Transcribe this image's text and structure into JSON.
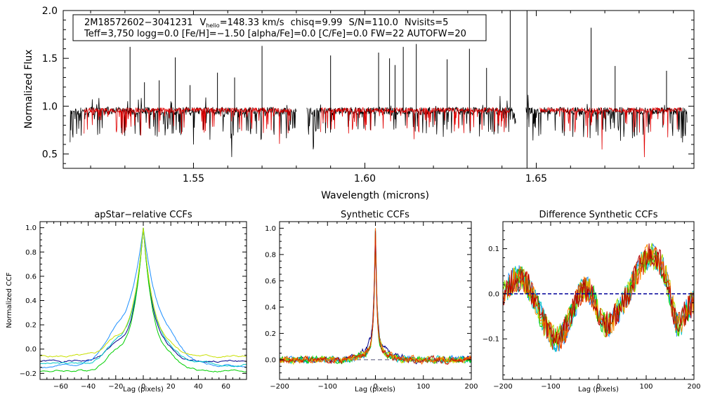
{
  "chart_data": [
    {
      "type": "line",
      "xlabel": "Wavelength (microns)",
      "ylabel": "Normalized Flux",
      "xlim": [
        1.512,
        1.696
      ],
      "ylim": [
        0.35,
        2.0
      ],
      "xticks": [
        1.55,
        1.6,
        1.65
      ],
      "xtick_labels": [
        "1.55",
        "1.60",
        "1.65"
      ],
      "yticks": [
        0.5,
        1.0,
        1.5,
        2.0
      ],
      "ytick_labels": [
        "0.5",
        "1.0",
        "1.5",
        "2.0"
      ],
      "info_line1": {
        "star": "2M18572602−3041231",
        "vhelio_main": "V",
        "vhelio_sub": "helio",
        "vhelio_value": "=148.33 km/s",
        "chisq": "chisq=9.99",
        "sn": "S/N=110.0",
        "nvisits": "Nvisits=5"
      },
      "info_line2": "Teff=3,750 logg=0.0 [Fe/H]=−1.50 [alpha/Fe]=0.0 [C/Fe]=0.0 FW=22 AUTOFW=20",
      "series": [
        {
          "name": "observed spectrum",
          "color": "#000000"
        },
        {
          "name": "model spectrum",
          "color": "#e00000"
        }
      ],
      "chip_ranges": [
        [
          1.514,
          1.58
        ],
        [
          1.583,
          1.644
        ],
        [
          1.647,
          1.694
        ]
      ],
      "emission_lines": [
        {
          "x": 1.5315,
          "y": 1.62
        },
        {
          "x": 1.5357,
          "y": 1.25
        },
        {
          "x": 1.54,
          "y": 1.27
        },
        {
          "x": 1.5447,
          "y": 1.51
        },
        {
          "x": 1.549,
          "y": 1.22
        },
        {
          "x": 1.557,
          "y": 1.35
        },
        {
          "x": 1.562,
          "y": 1.3
        },
        {
          "x": 1.57,
          "y": 1.63
        },
        {
          "x": 1.59,
          "y": 1.53
        },
        {
          "x": 1.604,
          "y": 1.56
        },
        {
          "x": 1.6072,
          "y": 1.5
        },
        {
          "x": 1.6088,
          "y": 1.43
        },
        {
          "x": 1.6112,
          "y": 1.62
        },
        {
          "x": 1.615,
          "y": 1.65
        },
        {
          "x": 1.624,
          "y": 1.49
        },
        {
          "x": 1.6305,
          "y": 1.6
        },
        {
          "x": 1.6355,
          "y": 1.4
        },
        {
          "x": 1.666,
          "y": 1.82
        },
        {
          "x": 1.673,
          "y": 1.42
        },
        {
          "x": 1.688,
          "y": 1.37
        }
      ],
      "spikes": [
        {
          "x": 1.6473,
          "y_low": 0.3,
          "y_high": 2.0
        },
        {
          "x": 1.6424,
          "y_low": 0.9,
          "y_high": 2.0
        }
      ]
    },
    {
      "type": "line",
      "title": "apStar−relative CCFs",
      "xlabel": "Lag (pixels)",
      "ylabel": "Normalized CCF",
      "xlim": [
        -75,
        75
      ],
      "ylim": [
        -0.25,
        1.05
      ],
      "xticks": [
        -60,
        -40,
        -20,
        0,
        20,
        40,
        60
      ],
      "xtick_labels": [
        "−60",
        "−40",
        "−20",
        "0",
        "20",
        "40",
        "60"
      ],
      "yticks": [
        -0.2,
        0.0,
        0.2,
        0.4,
        0.6,
        0.8,
        1.0
      ],
      "ytick_labels": [
        "−0.2",
        "0.0",
        "0.2",
        "0.4",
        "0.6",
        "0.8",
        "1.0"
      ],
      "series": [
        {
          "name": "visit 1",
          "color": "#00008b",
          "width": 7.5,
          "floor": -0.1,
          "bump": 0.16,
          "seed": 1
        },
        {
          "name": "visit 2",
          "color": "#1e90ff",
          "width": 13,
          "floor": -0.15,
          "bump": 0.22,
          "seed": 2
        },
        {
          "name": "visit 3",
          "color": "#00c8c8",
          "width": 8.5,
          "floor": -0.12,
          "bump": 0.19,
          "seed": 3
        },
        {
          "name": "visit 4",
          "color": "#00d000",
          "width": 8,
          "floor": -0.18,
          "bump": 0.18,
          "seed": 4
        },
        {
          "name": "visit 5",
          "color": "#c8e000",
          "width": 8,
          "floor": -0.06,
          "bump": 0.17,
          "seed": 5
        }
      ]
    },
    {
      "type": "line",
      "title": "Synthetic CCFs",
      "xlabel": "Lag (pixels)",
      "ylabel": "",
      "xlim": [
        -200,
        200
      ],
      "ylim": [
        -0.15,
        1.05
      ],
      "xticks": [
        -200,
        -100,
        0,
        100,
        200
      ],
      "xtick_labels": [
        "−200",
        "−100",
        "0",
        "100",
        "200"
      ],
      "yticks": [
        0.0,
        0.2,
        0.4,
        0.6,
        0.8,
        1.0
      ],
      "ytick_labels": [
        "0.0",
        "0.2",
        "0.4",
        "0.6",
        "0.8",
        "1.0"
      ],
      "reference_line": {
        "y": 0.0,
        "color": "#555577",
        "style": "dashed"
      },
      "series": [
        {
          "name": "visit 1",
          "color": "#00008b",
          "seed": 11,
          "offset": 0.05
        },
        {
          "name": "visit 2",
          "color": "#1e90ff",
          "seed": 12,
          "offset": 0.0
        },
        {
          "name": "visit 3",
          "color": "#00c8c8",
          "seed": 13,
          "offset": 0.0
        },
        {
          "name": "visit 4",
          "color": "#00d000",
          "seed": 14,
          "offset": -0.01
        },
        {
          "name": "visit 5",
          "color": "#c8e000",
          "seed": 15,
          "offset": 0.01
        },
        {
          "name": "visit 6",
          "color": "#ff6a00",
          "seed": 16,
          "offset": 0.0
        },
        {
          "name": "visit 7",
          "color": "#d02000",
          "seed": 17,
          "offset": 0.0
        }
      ]
    },
    {
      "type": "line",
      "title": "Difference Synthetic CCFs",
      "xlabel": "Lag (pixels)",
      "ylabel": "",
      "xlim": [
        -200,
        200
      ],
      "ylim": [
        -0.19,
        0.16
      ],
      "xticks": [
        -200,
        -100,
        0,
        100,
        200
      ],
      "xtick_labels": [
        "−200",
        "−100",
        "0",
        "100",
        "200"
      ],
      "yticks": [
        -0.1,
        0.0,
        0.1
      ],
      "ytick_labels": [
        "−0.1",
        "0.0",
        "0.1"
      ],
      "reference_line": {
        "y": 0.0,
        "color": "#000099",
        "style": "dashed"
      },
      "series": [
        {
          "name": "visit 1",
          "color": "#1e90ff",
          "seed": 21
        },
        {
          "name": "visit 2",
          "color": "#00c8c8",
          "seed": 22
        },
        {
          "name": "visit 3",
          "color": "#00d000",
          "seed": 23
        },
        {
          "name": "visit 4",
          "color": "#a0e000",
          "seed": 24
        },
        {
          "name": "visit 5",
          "color": "#ff8c00",
          "seed": 25
        },
        {
          "name": "visit 6",
          "color": "#e03000",
          "seed": 26
        },
        {
          "name": "visit 7",
          "color": "#b00000",
          "seed": 27
        }
      ]
    }
  ]
}
